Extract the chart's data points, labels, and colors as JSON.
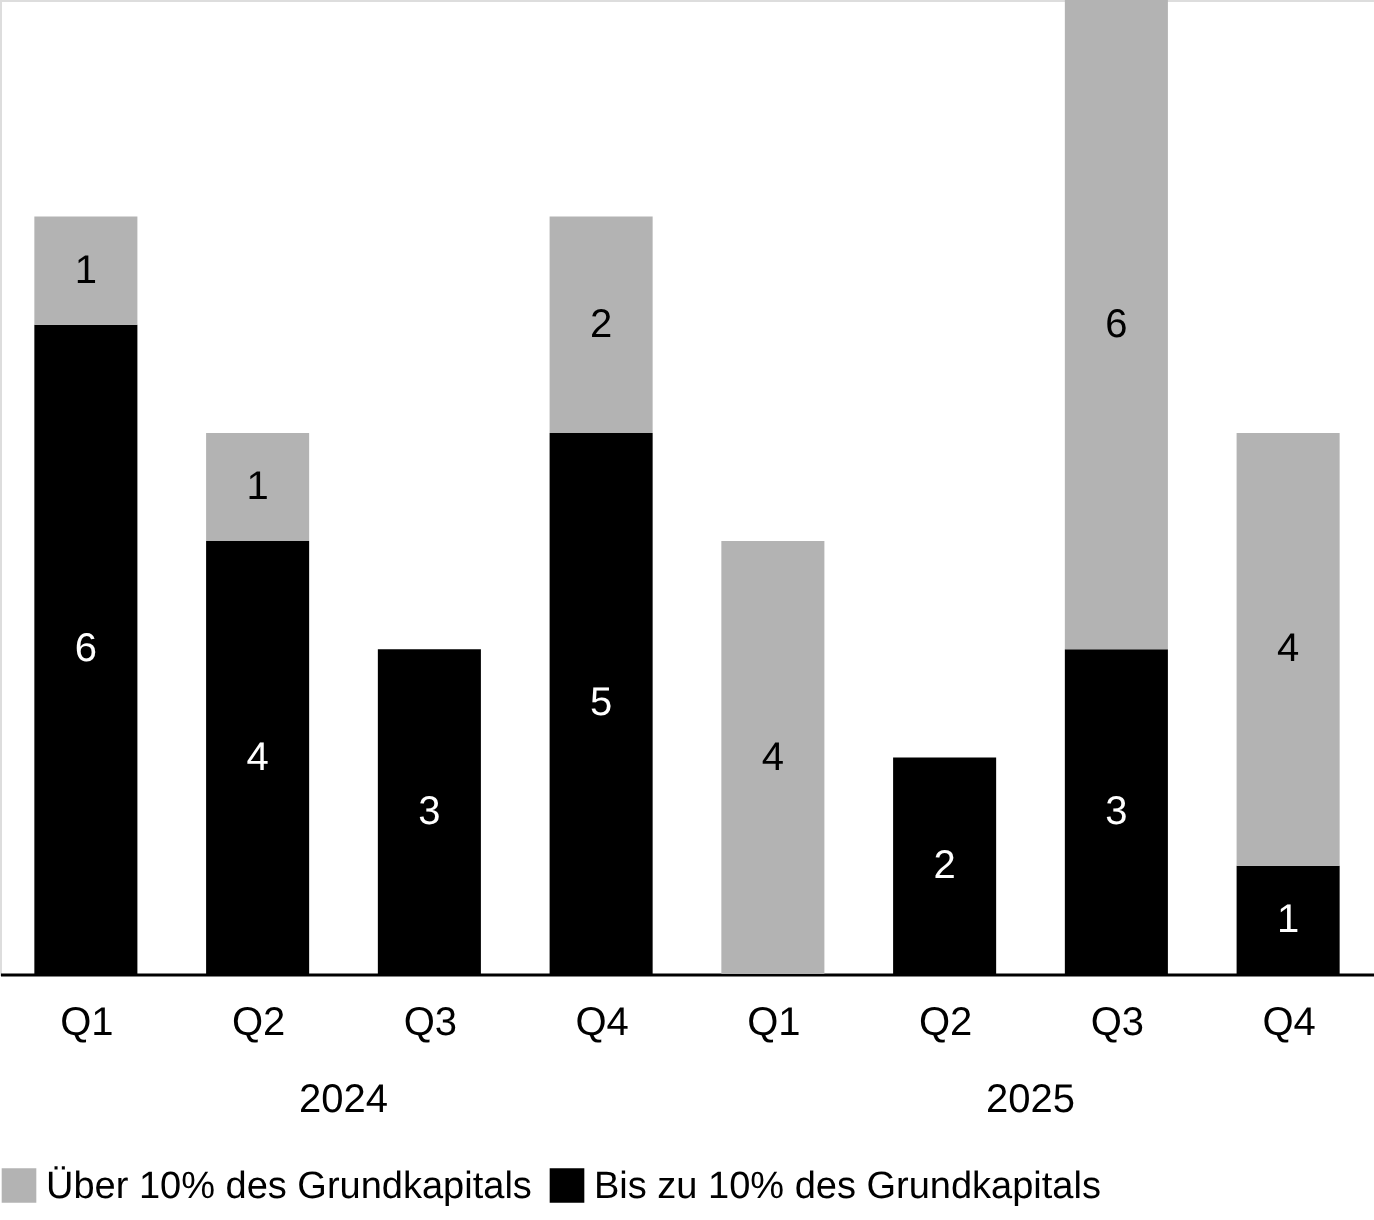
{
  "chart_data": {
    "type": "bar",
    "stacked": true,
    "categories": [
      "Q1",
      "Q2",
      "Q3",
      "Q4",
      "Q1",
      "Q2",
      "Q3",
      "Q4"
    ],
    "series": [
      {
        "name": "Bis zu 10% des Grundkapitals",
        "color": "#000000",
        "values": [
          6,
          4,
          3,
          5,
          null,
          2,
          3,
          1
        ]
      },
      {
        "name": "Über 10% des Grundkapitals",
        "color": "#b3b3b3",
        "values": [
          1,
          1,
          null,
          2,
          4,
          null,
          6,
          4
        ]
      }
    ],
    "ylim": [
      0,
      9
    ],
    "tick_labels": "x",
    "data_labels": true,
    "legend": "bottom",
    "grid": false,
    "annotations": [
      "2024",
      "2025"
    ]
  }
}
